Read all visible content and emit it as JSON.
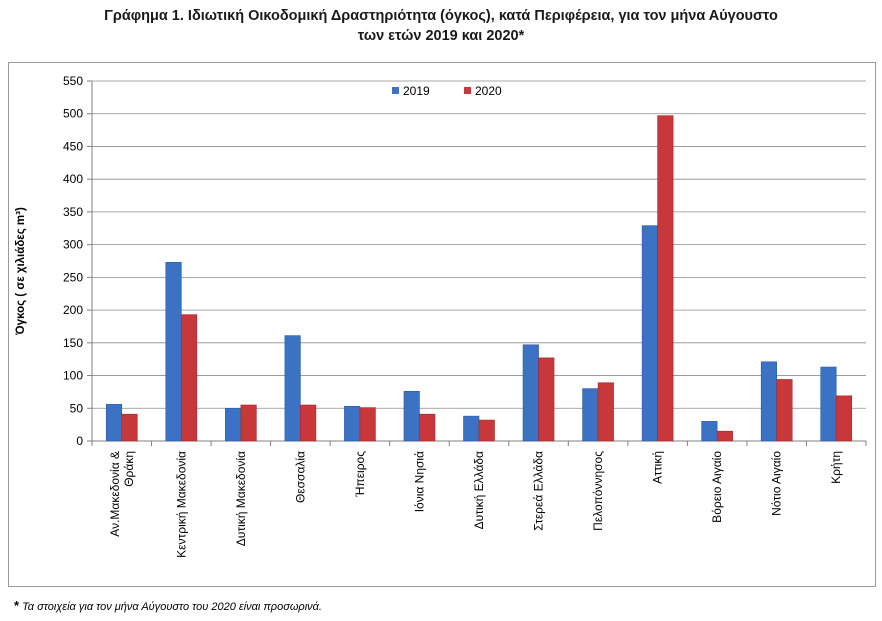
{
  "title_line1": "Γράφημα 1. Ιδιωτική Οικοδομική Δραστηριότητα (όγκος), κατά Περιφέρεια, για τον μήνα  Αύγουστο",
  "title_line2": "των ετών 2019 και 2020*",
  "footnote_star": "*",
  "footnote_text": "Τα στοιχεία για τον μήνα Αύγουστο του 2020 είναι προσωρινά.",
  "colors": {
    "series_2019": "#3c72c4",
    "series_2020": "#c8383a"
  },
  "chart_data": {
    "type": "bar",
    "title": "Γράφημα 1. Ιδιωτική Οικοδομική Δραστηριότητα (όγκος), κατά Περιφέρεια, για τον μήνα  Αύγουστο των ετών 2019 και 2020*",
    "ylabel": "Όγκος ( σε χιλιάδες  m³)",
    "xlabel": "",
    "ylim": [
      0,
      550
    ],
    "yticks": [
      "0",
      "50",
      "100",
      "150",
      "200",
      "250",
      "300",
      "350",
      "400",
      "450",
      "500",
      "550"
    ],
    "grid": true,
    "legend_position": "top-center",
    "categories": [
      [
        "Αν.Μακεδονία &",
        "Θράκη"
      ],
      [
        "Κεντρική Μακεδονία"
      ],
      [
        "Δυτική Μακεδονία"
      ],
      [
        "Θεσσαλία"
      ],
      [
        "Ήπειρος"
      ],
      [
        "Ιόνια Νησιά"
      ],
      [
        "Δυτική Ελλάδα"
      ],
      [
        "Στερεά Ελλάδα"
      ],
      [
        "Πελοπόννησος"
      ],
      [
        "Αττική"
      ],
      [
        "Βόρειο Αιγαίο"
      ],
      [
        "Νότιο Αιγαίο"
      ],
      [
        "Κρήτη"
      ]
    ],
    "series": [
      {
        "name": "2019",
        "values": [
          56,
          273,
          50,
          161,
          53,
          76,
          38,
          147,
          80,
          329,
          30,
          121,
          113
        ]
      },
      {
        "name": "2020",
        "values": [
          41,
          193,
          55,
          55,
          51,
          41,
          32,
          127,
          89,
          497,
          15,
          94,
          69
        ]
      }
    ]
  }
}
